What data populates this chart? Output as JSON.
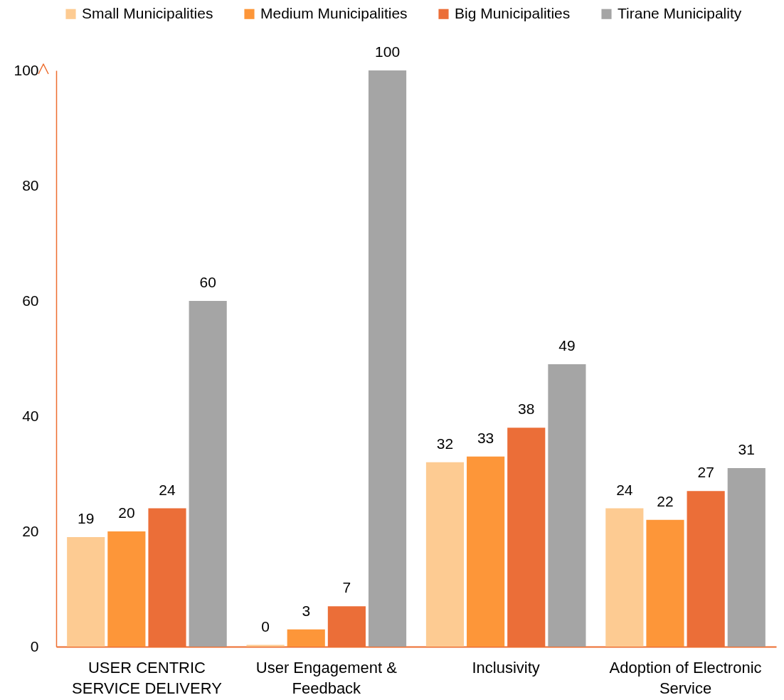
{
  "chart_data": {
    "type": "bar",
    "categories": [
      "USER CENTRIC SERVICE DELIVERY",
      "User Engagement & Feedback",
      "Inclusivity",
      "Adoption of Electronic Service"
    ],
    "series": [
      {
        "name": "Small Municipalities",
        "color": "#fdcb92",
        "values": [
          19,
          0.3,
          32,
          24
        ],
        "value_labels": [
          "19",
          "0",
          "32",
          "24"
        ]
      },
      {
        "name": "Medium Municipalities",
        "color": "#fd9639",
        "values": [
          20,
          3,
          33,
          22
        ],
        "value_labels": [
          "20",
          "3",
          "33",
          "22"
        ]
      },
      {
        "name": "Big Municipalities",
        "color": "#eb6e38",
        "values": [
          24,
          7,
          38,
          27
        ],
        "value_labels": [
          "24",
          "7",
          "38",
          "27"
        ]
      },
      {
        "name": "Tirane Municipality",
        "color": "#a5a5a5",
        "values": [
          60,
          100,
          49,
          31
        ],
        "value_labels": [
          "60",
          "100",
          "49",
          "31"
        ]
      }
    ],
    "ylim": [
      0,
      100
    ],
    "yticks": [
      0,
      20,
      40,
      60,
      80,
      100
    ],
    "legend": "top"
  }
}
